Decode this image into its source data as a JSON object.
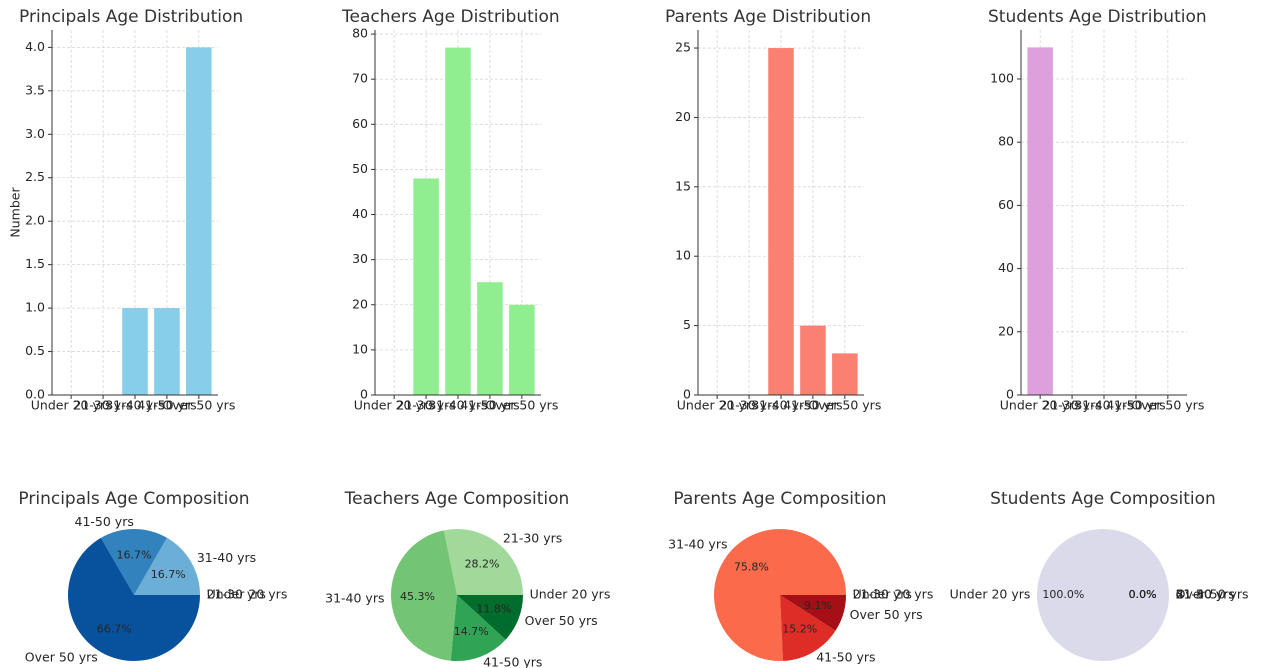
{
  "chart_data": [
    {
      "type": "bar",
      "title": "Principals Age Distribution",
      "ylabel": "Number",
      "categories": [
        "Under 20 yrs",
        "21-30 yrs",
        "31-40 yrs",
        "41-50 yrs",
        "Over 50 yrs"
      ],
      "values": [
        0,
        0,
        1,
        1,
        4
      ],
      "color": "#87ceeb",
      "ylim": [
        0,
        4.2
      ],
      "yticks": [
        {
          "value": 0,
          "label": "0.0"
        },
        0.5,
        {
          "value": 1,
          "label": "1.0"
        },
        1.5,
        {
          "value": 2,
          "label": "2.0"
        },
        2.5,
        {
          "value": 3,
          "label": "3.0"
        },
        3.5,
        {
          "value": 4,
          "label": "4.0"
        }
      ],
      "grid": true
    },
    {
      "type": "bar",
      "title": "Teachers Age Distribution",
      "categories": [
        "Under 20 yrs",
        "21-30 yrs",
        "31-40 yrs",
        "41-50 yrs",
        "Over 50 yrs"
      ],
      "values": [
        0,
        48,
        77,
        25,
        20
      ],
      "color": "#90ee90",
      "ylim": [
        0,
        80.9
      ],
      "yticks": [
        0,
        10,
        20,
        30,
        40,
        50,
        60,
        70,
        80
      ],
      "grid": true
    },
    {
      "type": "bar",
      "title": "Parents Age Distribution",
      "categories": [
        "Under 20 yrs",
        "21-30 yrs",
        "31-40 yrs",
        "41-50 yrs",
        "Over 50 yrs"
      ],
      "values": [
        0,
        0,
        25,
        5,
        3
      ],
      "color": "#fa8072",
      "ylim": [
        0,
        26.3
      ],
      "yticks": [
        0,
        5,
        10,
        15,
        20,
        25
      ],
      "grid": true
    },
    {
      "type": "bar",
      "title": "Students Age Distribution",
      "categories": [
        "Under 20 yrs",
        "21-30 yrs",
        "31-40 yrs",
        "41-50 yrs",
        "Over 50 yrs"
      ],
      "values": [
        110,
        0,
        0,
        0,
        0
      ],
      "color": "#dda0dd",
      "ylim": [
        0,
        115.5
      ],
      "yticks": [
        0,
        20,
        40,
        60,
        80,
        100
      ],
      "grid": true
    },
    {
      "type": "pie",
      "title": "Principals Age Composition",
      "categories": [
        "Under 20 yrs",
        "21-30 yrs",
        "31-40 yrs",
        "41-50 yrs",
        "Over 50 yrs"
      ],
      "values": [
        0,
        0,
        16.7,
        16.7,
        66.7
      ],
      "value_labels": [
        "0.0%",
        "0.0%",
        "16.7%",
        "16.7%",
        "66.7%"
      ],
      "colors": [
        "#deebf7",
        "#c6dbef",
        "#6baed6",
        "#3182bd",
        "#08519c"
      ]
    },
    {
      "type": "pie",
      "title": "Teachers Age Composition",
      "categories": [
        "Under 20 yrs",
        "21-30 yrs",
        "31-40 yrs",
        "41-50 yrs",
        "Over 50 yrs"
      ],
      "values": [
        0,
        28.2,
        45.3,
        14.7,
        11.8
      ],
      "value_labels": [
        "0.0%",
        "28.2%",
        "45.3%",
        "14.7%",
        "11.8%"
      ],
      "colors": [
        "#e5f5e0",
        "#a1d99b",
        "#74c476",
        "#31a354",
        "#006d2c"
      ]
    },
    {
      "type": "pie",
      "title": "Parents Age Composition",
      "categories": [
        "Under 20 yrs",
        "21-30 yrs",
        "31-40 yrs",
        "41-50 yrs",
        "Over 50 yrs"
      ],
      "values": [
        0,
        0,
        75.8,
        15.2,
        9.1
      ],
      "value_labels": [
        "0.0%",
        "0.0%",
        "75.8%",
        "15.2%",
        "9.1%"
      ],
      "colors": [
        "#fee0d2",
        "#fcbba1",
        "#fb6a4a",
        "#de2d26",
        "#a50f15"
      ]
    },
    {
      "type": "pie",
      "title": "Students Age Composition",
      "categories": [
        "Under 20 yrs",
        "21-30 yrs",
        "31-40 yrs",
        "41-50 yrs",
        "Over 50 yrs"
      ],
      "values": [
        100,
        0,
        0,
        0,
        0
      ],
      "value_labels": [
        "100.0%",
        "0.0%",
        "0.0%",
        "0.0%",
        "0.0%"
      ],
      "colors": [
        "#dadaeb",
        "#bcbddc",
        "#9e9ac8",
        "#756bb1",
        "#54278f"
      ]
    }
  ]
}
